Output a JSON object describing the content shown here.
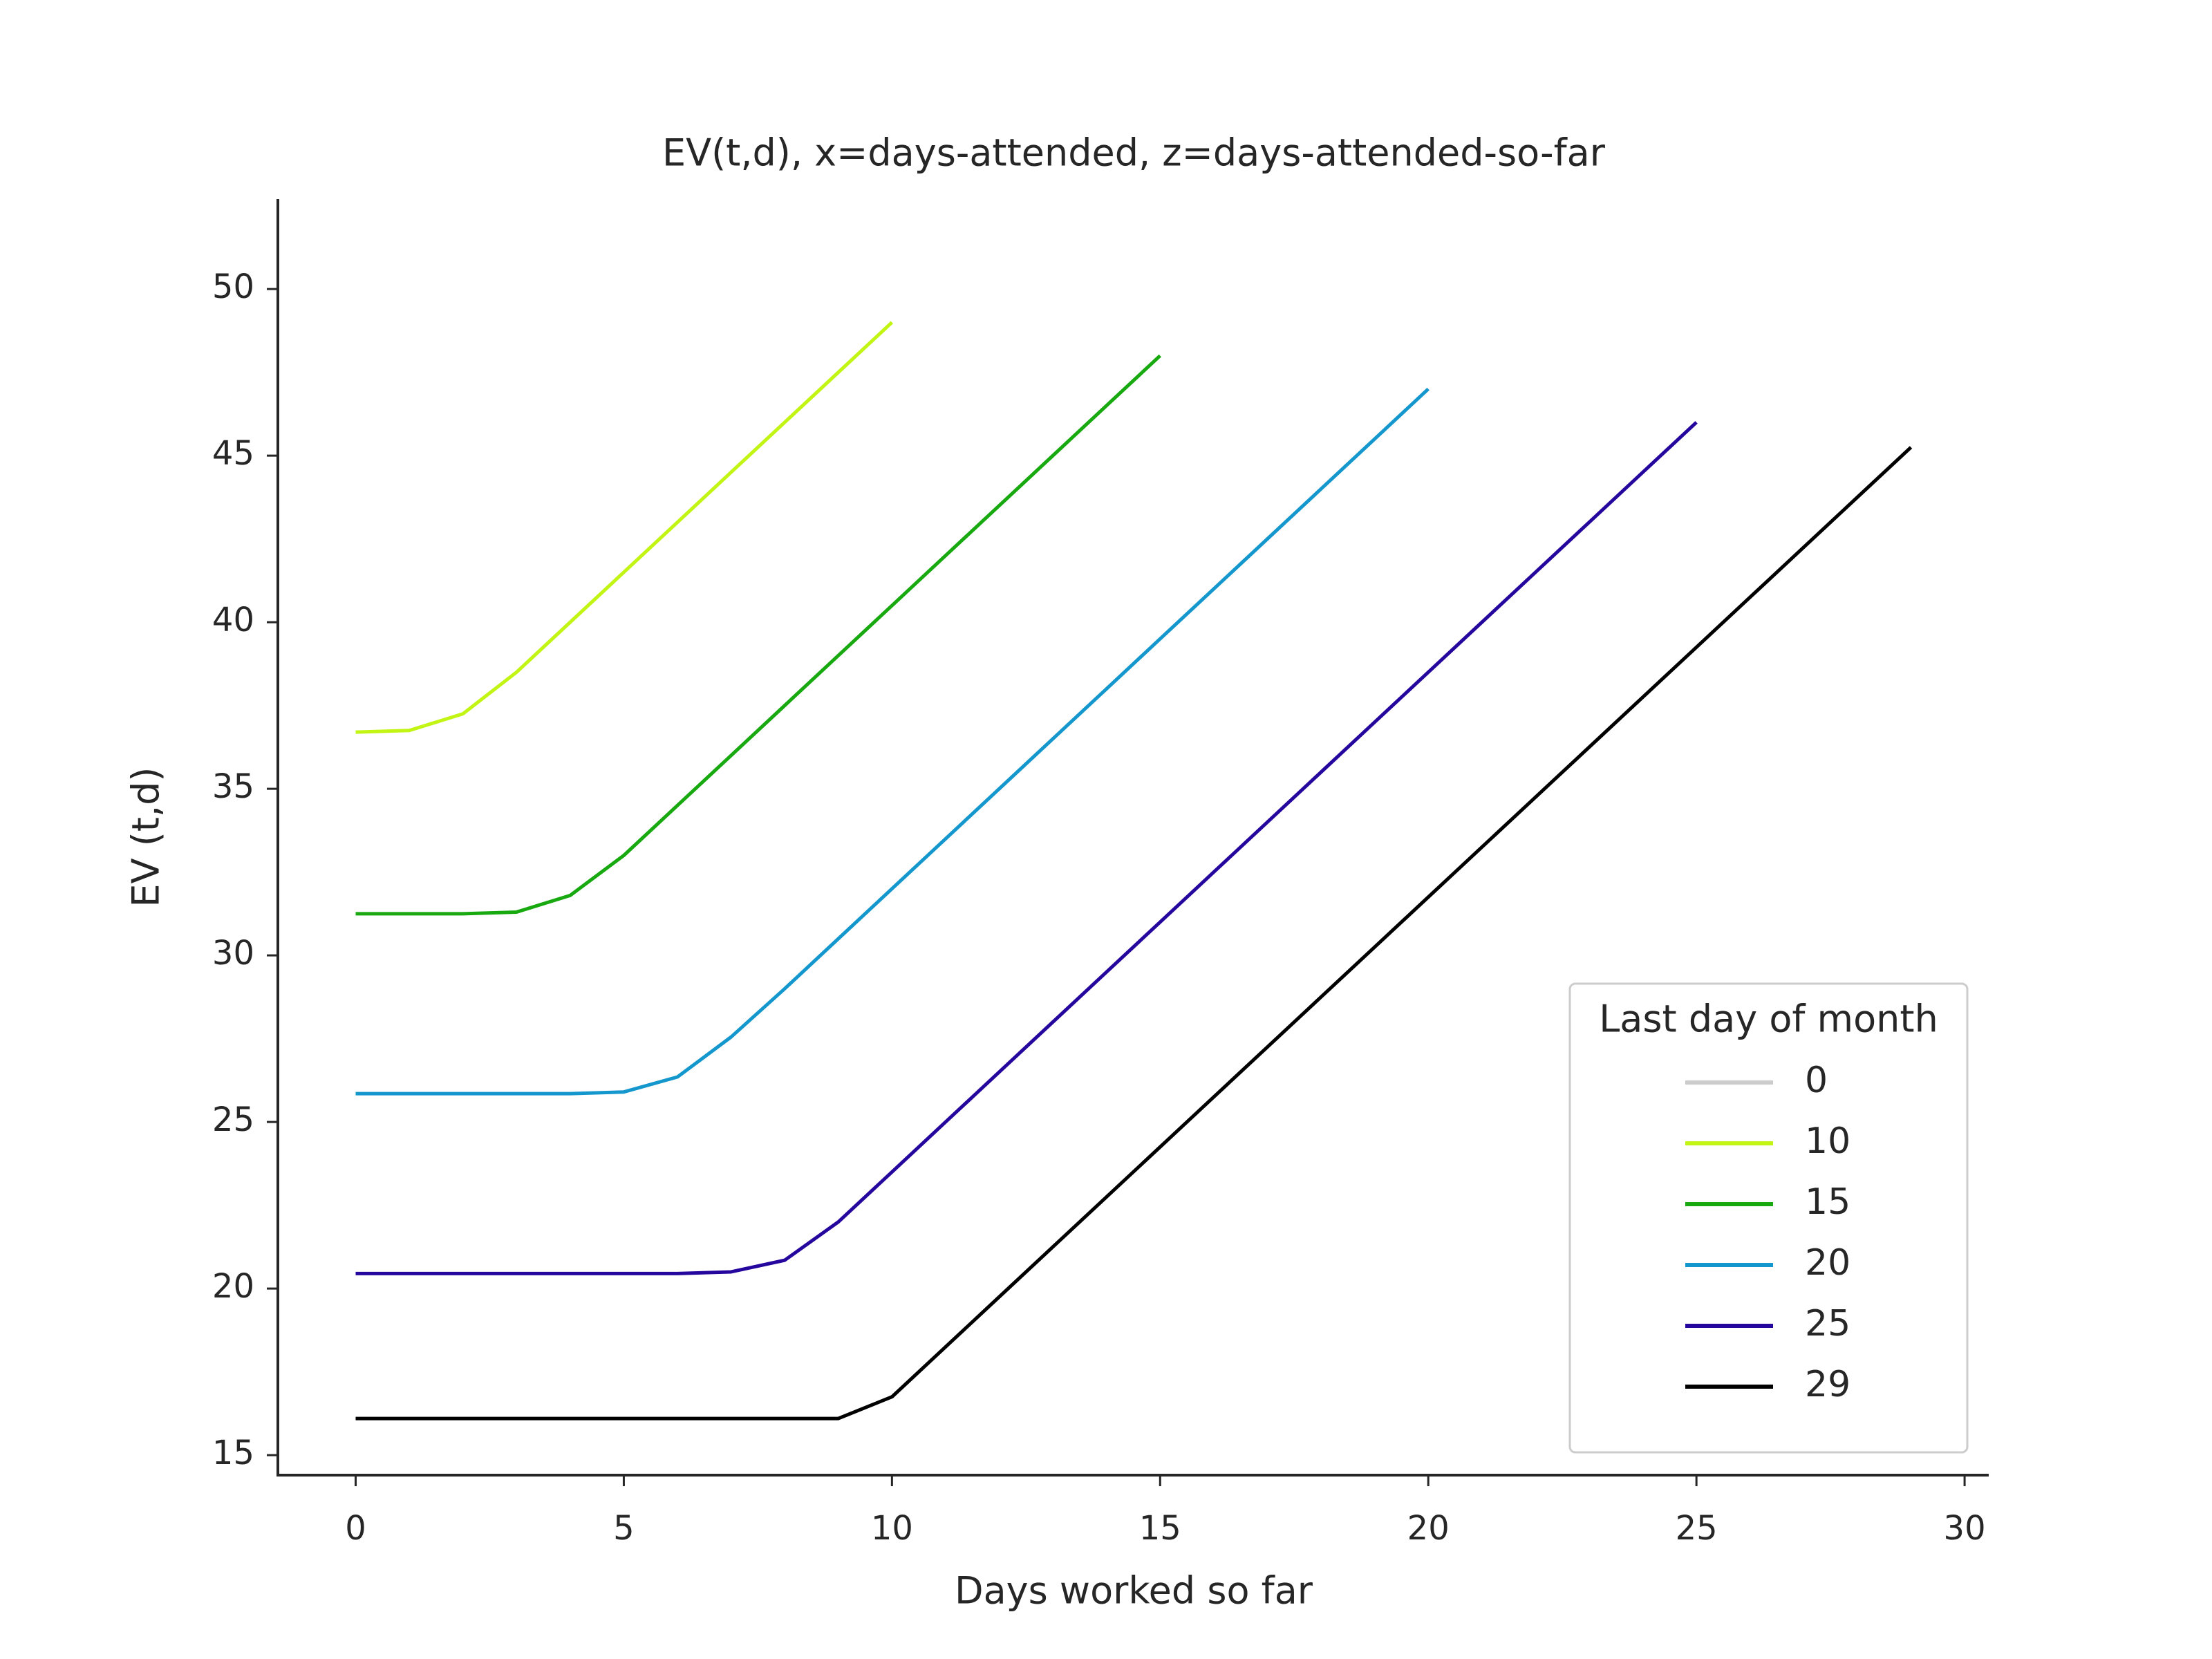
{
  "chart_data": {
    "type": "line",
    "title": "EV(t,d), x=days-attended, z=days-attended-so-far",
    "x_label": "Days worked so far",
    "y_label": "EV (t,d)",
    "x": [
      0,
      1,
      2,
      3,
      4,
      5,
      6,
      7,
      8,
      9,
      10,
      11,
      12,
      13,
      14,
      15,
      16,
      17,
      18,
      19,
      20,
      21,
      22,
      23,
      24,
      25,
      26,
      27,
      28,
      29
    ],
    "series": [
      {
        "name": "0",
        "color": "#cccccc",
        "values": [
          null,
          null,
          null,
          null,
          null,
          null,
          null,
          null,
          null,
          null,
          null,
          null,
          null,
          null,
          null,
          null,
          null,
          null,
          null,
          null,
          null,
          null,
          null,
          null,
          null,
          null,
          null,
          null,
          null,
          null
        ]
      },
      {
        "name": "10",
        "color": "#c2f514",
        "values": [
          36.7,
          36.75,
          37.25,
          38.5,
          40,
          41.5,
          43,
          44.5,
          46,
          47.5,
          49,
          null,
          null,
          null,
          null,
          null,
          null,
          null,
          null,
          null,
          null,
          null,
          null,
          null,
          null,
          null,
          null,
          null,
          null,
          null
        ]
      },
      {
        "name": "15",
        "color": "#17a90f",
        "values": [
          31.25,
          31.25,
          31.25,
          31.3,
          31.8,
          33,
          34.5,
          36,
          37.5,
          39,
          40.5,
          42,
          43.5,
          45,
          46.5,
          48,
          null,
          null,
          null,
          null,
          null,
          null,
          null,
          null,
          null,
          null,
          null,
          null,
          null,
          null
        ]
      },
      {
        "name": "20",
        "color": "#1497cc",
        "values": [
          25.85,
          25.85,
          25.85,
          25.85,
          25.85,
          25.9,
          26.35,
          27.55,
          29,
          30.5,
          32,
          33.5,
          35,
          36.5,
          38,
          39.5,
          41,
          42.5,
          44,
          45.5,
          47,
          null,
          null,
          null,
          null,
          null,
          null,
          null,
          null,
          null
        ]
      },
      {
        "name": "25",
        "color": "#26079e",
        "values": [
          20.45,
          20.45,
          20.45,
          20.45,
          20.45,
          20.45,
          20.45,
          20.5,
          20.85,
          22,
          23.5,
          25,
          26.5,
          28,
          29.5,
          31,
          32.5,
          34,
          35.5,
          37,
          38.5,
          40,
          41.5,
          43,
          44.5,
          46,
          null,
          null,
          null,
          null
        ]
      },
      {
        "name": "29",
        "color": "#000000",
        "values": [
          16.1,
          16.1,
          16.1,
          16.1,
          16.1,
          16.1,
          16.1,
          16.1,
          16.1,
          16.1,
          16.75,
          18.25,
          19.75,
          21.25,
          22.75,
          24.25,
          25.75,
          27.25,
          28.75,
          30.25,
          31.75,
          33.25,
          34.75,
          36.25,
          37.75,
          39.25,
          40.75,
          42.25,
          43.75,
          45.25
        ]
      }
    ],
    "legend_title": "Last day of month",
    "legend_position": "lower right",
    "xlim": [
      -1.45,
      30.45
    ],
    "xticks": [
      0,
      5,
      10,
      15,
      20,
      25,
      30
    ],
    "ylim": [
      14.4,
      52.7
    ],
    "yticks": [
      15,
      20,
      25,
      30,
      35,
      40,
      45,
      50
    ],
    "grid": false
  }
}
